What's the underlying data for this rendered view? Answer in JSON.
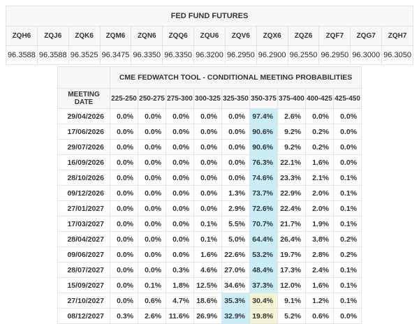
{
  "colors": {
    "header_bg": "#f7f7f7",
    "border": "#e2e2e2",
    "text": "#333333",
    "highlight_cyan": "#c8eef8",
    "highlight_yellow": "#f5f3d6"
  },
  "futures_table": {
    "title": "FED FUND FUTURES",
    "columns": [
      "ZQH6",
      "ZQJ6",
      "ZQK6",
      "ZQM6",
      "ZQN6",
      "ZQQ6",
      "ZQU6",
      "ZQV6",
      "ZQX6",
      "ZQZ6",
      "ZQF7",
      "ZQG7",
      "ZQH7"
    ],
    "values": [
      "96.3588",
      "96.3588",
      "96.3525",
      "96.3475",
      "96.3350",
      "96.3350",
      "96.3200",
      "96.2950",
      "96.2900",
      "96.2550",
      "96.2950",
      "96.3000",
      "96.3050"
    ]
  },
  "fedwatch_table": {
    "title": "CME FEDWATCH TOOL - CONDITIONAL MEETING PROBABILITIES",
    "date_column_header": "MEETING DATE",
    "range_headers": [
      "225-250",
      "250-275",
      "275-300",
      "300-325",
      "325-350",
      "350-375",
      "375-400",
      "400-425",
      "425-450"
    ],
    "rows": [
      {
        "date": "29/04/2026",
        "values": [
          "0.0%",
          "0.0%",
          "0.0%",
          "0.0%",
          "0.0%",
          "97.4%",
          "2.6%",
          "0.0%",
          "0.0%"
        ],
        "cyan": 5,
        "yellow": null
      },
      {
        "date": "17/06/2026",
        "values": [
          "0.0%",
          "0.0%",
          "0.0%",
          "0.0%",
          "0.0%",
          "90.6%",
          "9.2%",
          "0.2%",
          "0.0%"
        ],
        "cyan": 5,
        "yellow": null
      },
      {
        "date": "29/07/2026",
        "values": [
          "0.0%",
          "0.0%",
          "0.0%",
          "0.0%",
          "0.0%",
          "90.6%",
          "9.2%",
          "0.2%",
          "0.0%"
        ],
        "cyan": 5,
        "yellow": null
      },
      {
        "date": "16/09/2026",
        "values": [
          "0.0%",
          "0.0%",
          "0.0%",
          "0.0%",
          "0.0%",
          "76.3%",
          "22.1%",
          "1.6%",
          "0.0%"
        ],
        "cyan": 5,
        "yellow": null
      },
      {
        "date": "28/10/2026",
        "values": [
          "0.0%",
          "0.0%",
          "0.0%",
          "0.0%",
          "0.0%",
          "74.6%",
          "23.3%",
          "2.1%",
          "0.1%"
        ],
        "cyan": 5,
        "yellow": null
      },
      {
        "date": "09/12/2026",
        "values": [
          "0.0%",
          "0.0%",
          "0.0%",
          "0.0%",
          "1.3%",
          "73.7%",
          "22.9%",
          "2.0%",
          "0.1%"
        ],
        "cyan": 5,
        "yellow": null
      },
      {
        "date": "27/01/2027",
        "values": [
          "0.0%",
          "0.0%",
          "0.0%",
          "0.0%",
          "2.9%",
          "72.6%",
          "22.4%",
          "2.0%",
          "0.1%"
        ],
        "cyan": 5,
        "yellow": null
      },
      {
        "date": "17/03/2027",
        "values": [
          "0.0%",
          "0.0%",
          "0.0%",
          "0.1%",
          "5.5%",
          "70.7%",
          "21.7%",
          "1.9%",
          "0.1%"
        ],
        "cyan": 5,
        "yellow": null
      },
      {
        "date": "28/04/2027",
        "values": [
          "0.0%",
          "0.0%",
          "0.0%",
          "0.1%",
          "5.0%",
          "64.4%",
          "26.4%",
          "3.8%",
          "0.2%"
        ],
        "cyan": 5,
        "yellow": null
      },
      {
        "date": "09/06/2027",
        "values": [
          "0.0%",
          "0.0%",
          "0.0%",
          "1.6%",
          "22.6%",
          "53.2%",
          "19.7%",
          "2.8%",
          "0.2%"
        ],
        "cyan": 5,
        "yellow": null
      },
      {
        "date": "28/07/2027",
        "values": [
          "0.0%",
          "0.0%",
          "0.3%",
          "4.6%",
          "27.0%",
          "48.4%",
          "17.3%",
          "2.4%",
          "0.1%"
        ],
        "cyan": 5,
        "yellow": null
      },
      {
        "date": "15/09/2027",
        "values": [
          "0.0%",
          "0.1%",
          "1.8%",
          "12.5%",
          "34.6%",
          "37.3%",
          "12.0%",
          "1.6%",
          "0.1%"
        ],
        "cyan": 5,
        "yellow": null
      },
      {
        "date": "27/10/2027",
        "values": [
          "0.0%",
          "0.6%",
          "4.7%",
          "18.6%",
          "35.3%",
          "30.4%",
          "9.1%",
          "1.2%",
          "0.1%"
        ],
        "cyan": 4,
        "yellow": 5
      },
      {
        "date": "08/12/2027",
        "values": [
          "0.3%",
          "2.6%",
          "11.6%",
          "26.9%",
          "32.9%",
          "19.8%",
          "5.2%",
          "0.6%",
          "0.0%"
        ],
        "cyan": 4,
        "yellow": 5
      }
    ]
  }
}
